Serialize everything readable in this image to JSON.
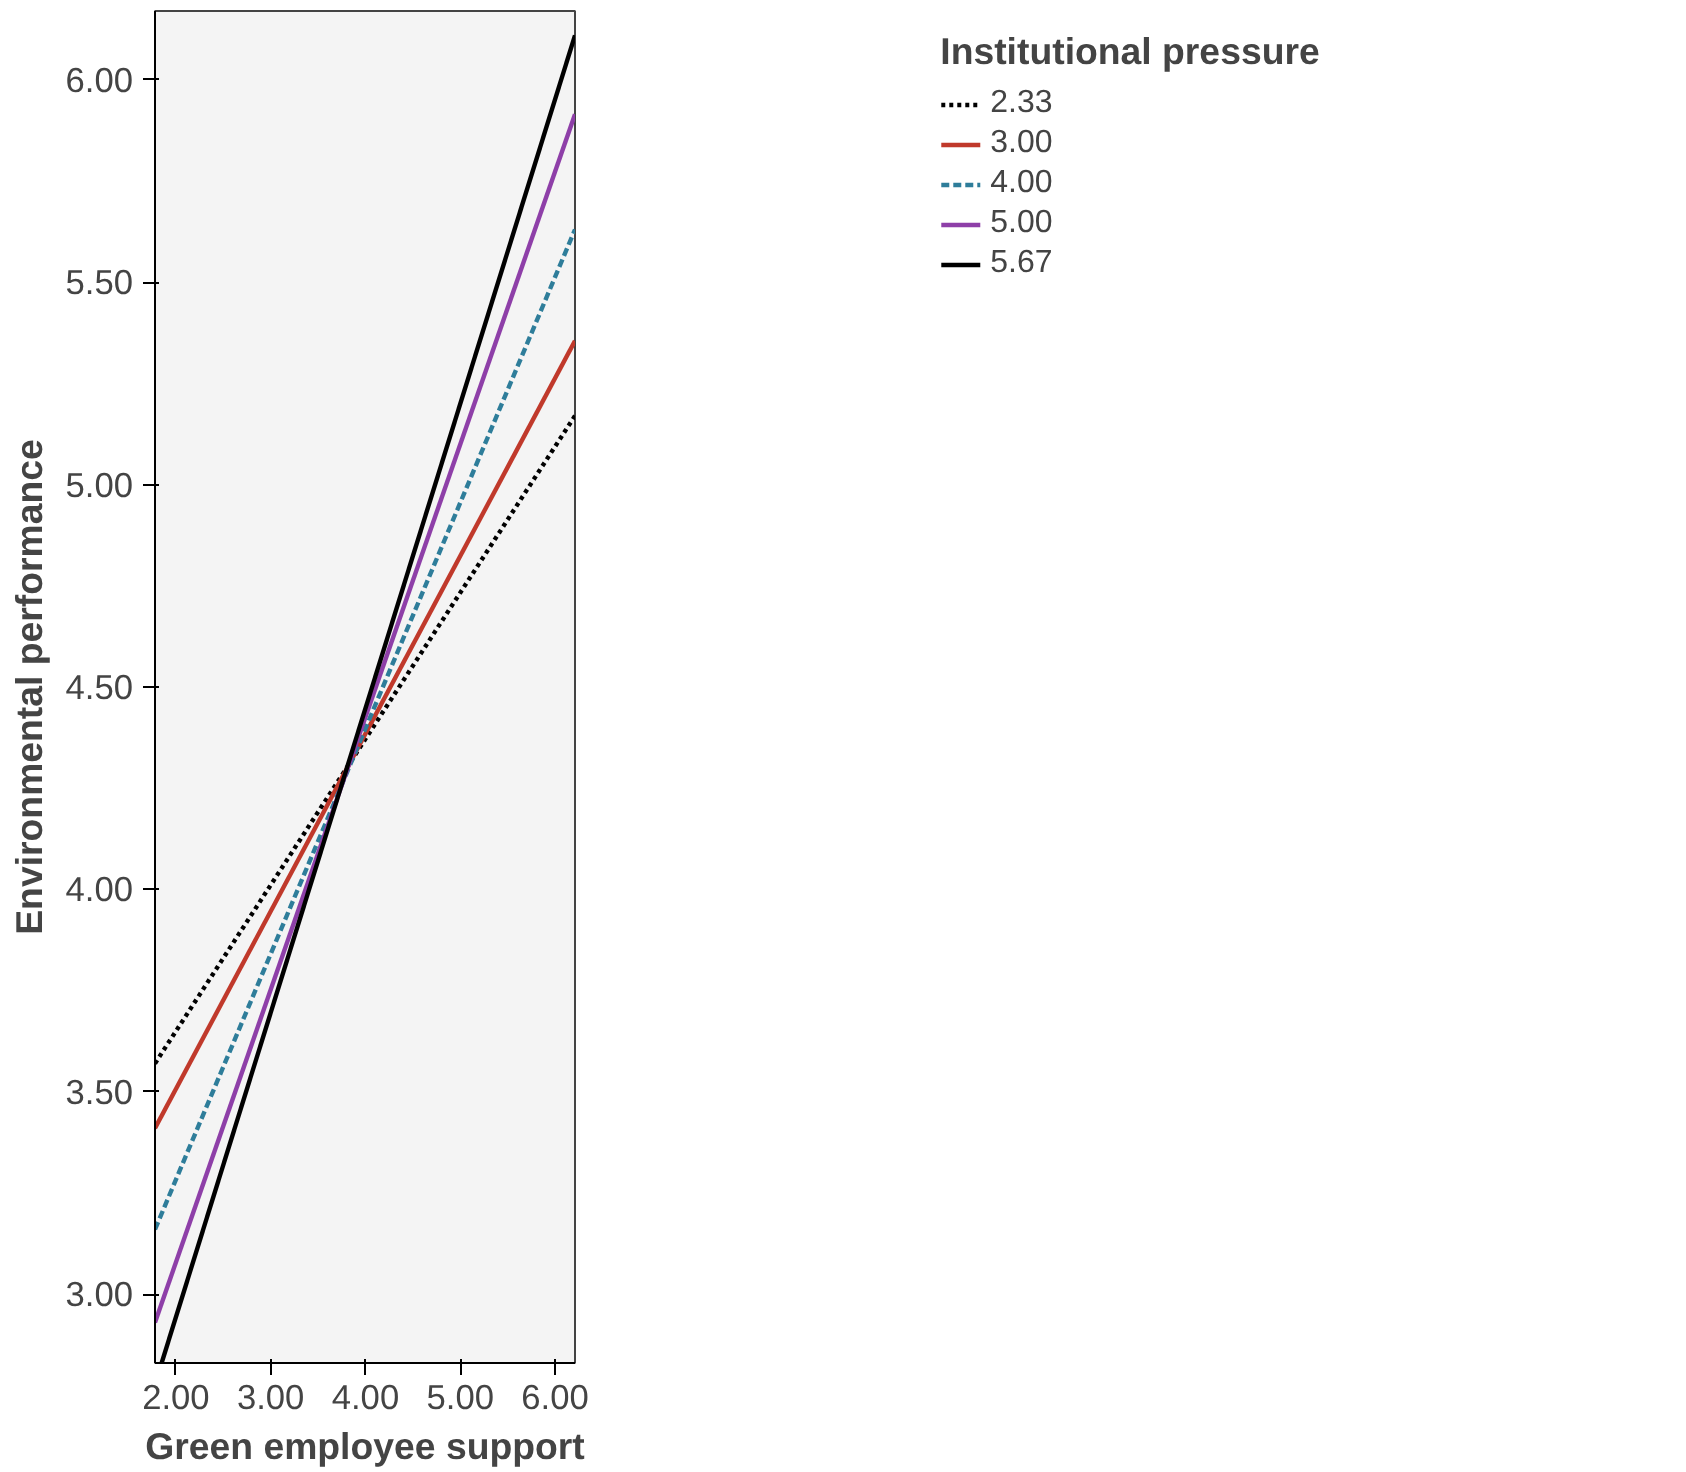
{
  "chart_data": {
    "type": "line",
    "xlabel": "Green employee support",
    "ylabel": "Environmental performance",
    "legend_title": "Institutional pressure",
    "legend": "top right",
    "grid": false,
    "x": [
      1.78,
      6.21
    ],
    "xlim": [
      1.78,
      6.21
    ],
    "ylim": [
      2.83,
      6.17
    ],
    "xticks": [
      {
        "value": 2,
        "label": "2.00"
      },
      {
        "value": 3,
        "label": "3.00"
      },
      {
        "value": 4,
        "label": "4.00"
      },
      {
        "value": 5,
        "label": "5.00"
      },
      {
        "value": 6,
        "label": "6.00"
      }
    ],
    "yticks": [
      {
        "value": 3,
        "label": "3.00"
      },
      {
        "value": 3.5,
        "label": "3.50"
      },
      {
        "value": 4,
        "label": "4.00"
      },
      {
        "value": 4.5,
        "label": "4.50"
      },
      {
        "value": 5,
        "label": "5.00"
      },
      {
        "value": 5.5,
        "label": "5.50"
      },
      {
        "value": 6,
        "label": "6.00"
      }
    ],
    "series": [
      {
        "name": "2.33",
        "color": "#000000",
        "line_style": "dotted",
        "values": [
          3.57,
          5.17
        ]
      },
      {
        "name": "3.00",
        "color": "#c0392b",
        "line_style": "solid",
        "values": [
          3.41,
          5.355
        ]
      },
      {
        "name": "4.00",
        "color": "#2e7d9a",
        "line_style": "dashed",
        "values": [
          3.16,
          5.63
        ]
      },
      {
        "name": "5.00",
        "color": "#8e3fa8",
        "line_style": "solid",
        "values": [
          2.93,
          5.915
        ]
      },
      {
        "name": "5.67",
        "color": "#000000",
        "line_style": "solid",
        "x": [
          1.85,
          6.21
        ],
        "values": [
          2.83,
          6.11
        ]
      }
    ]
  }
}
